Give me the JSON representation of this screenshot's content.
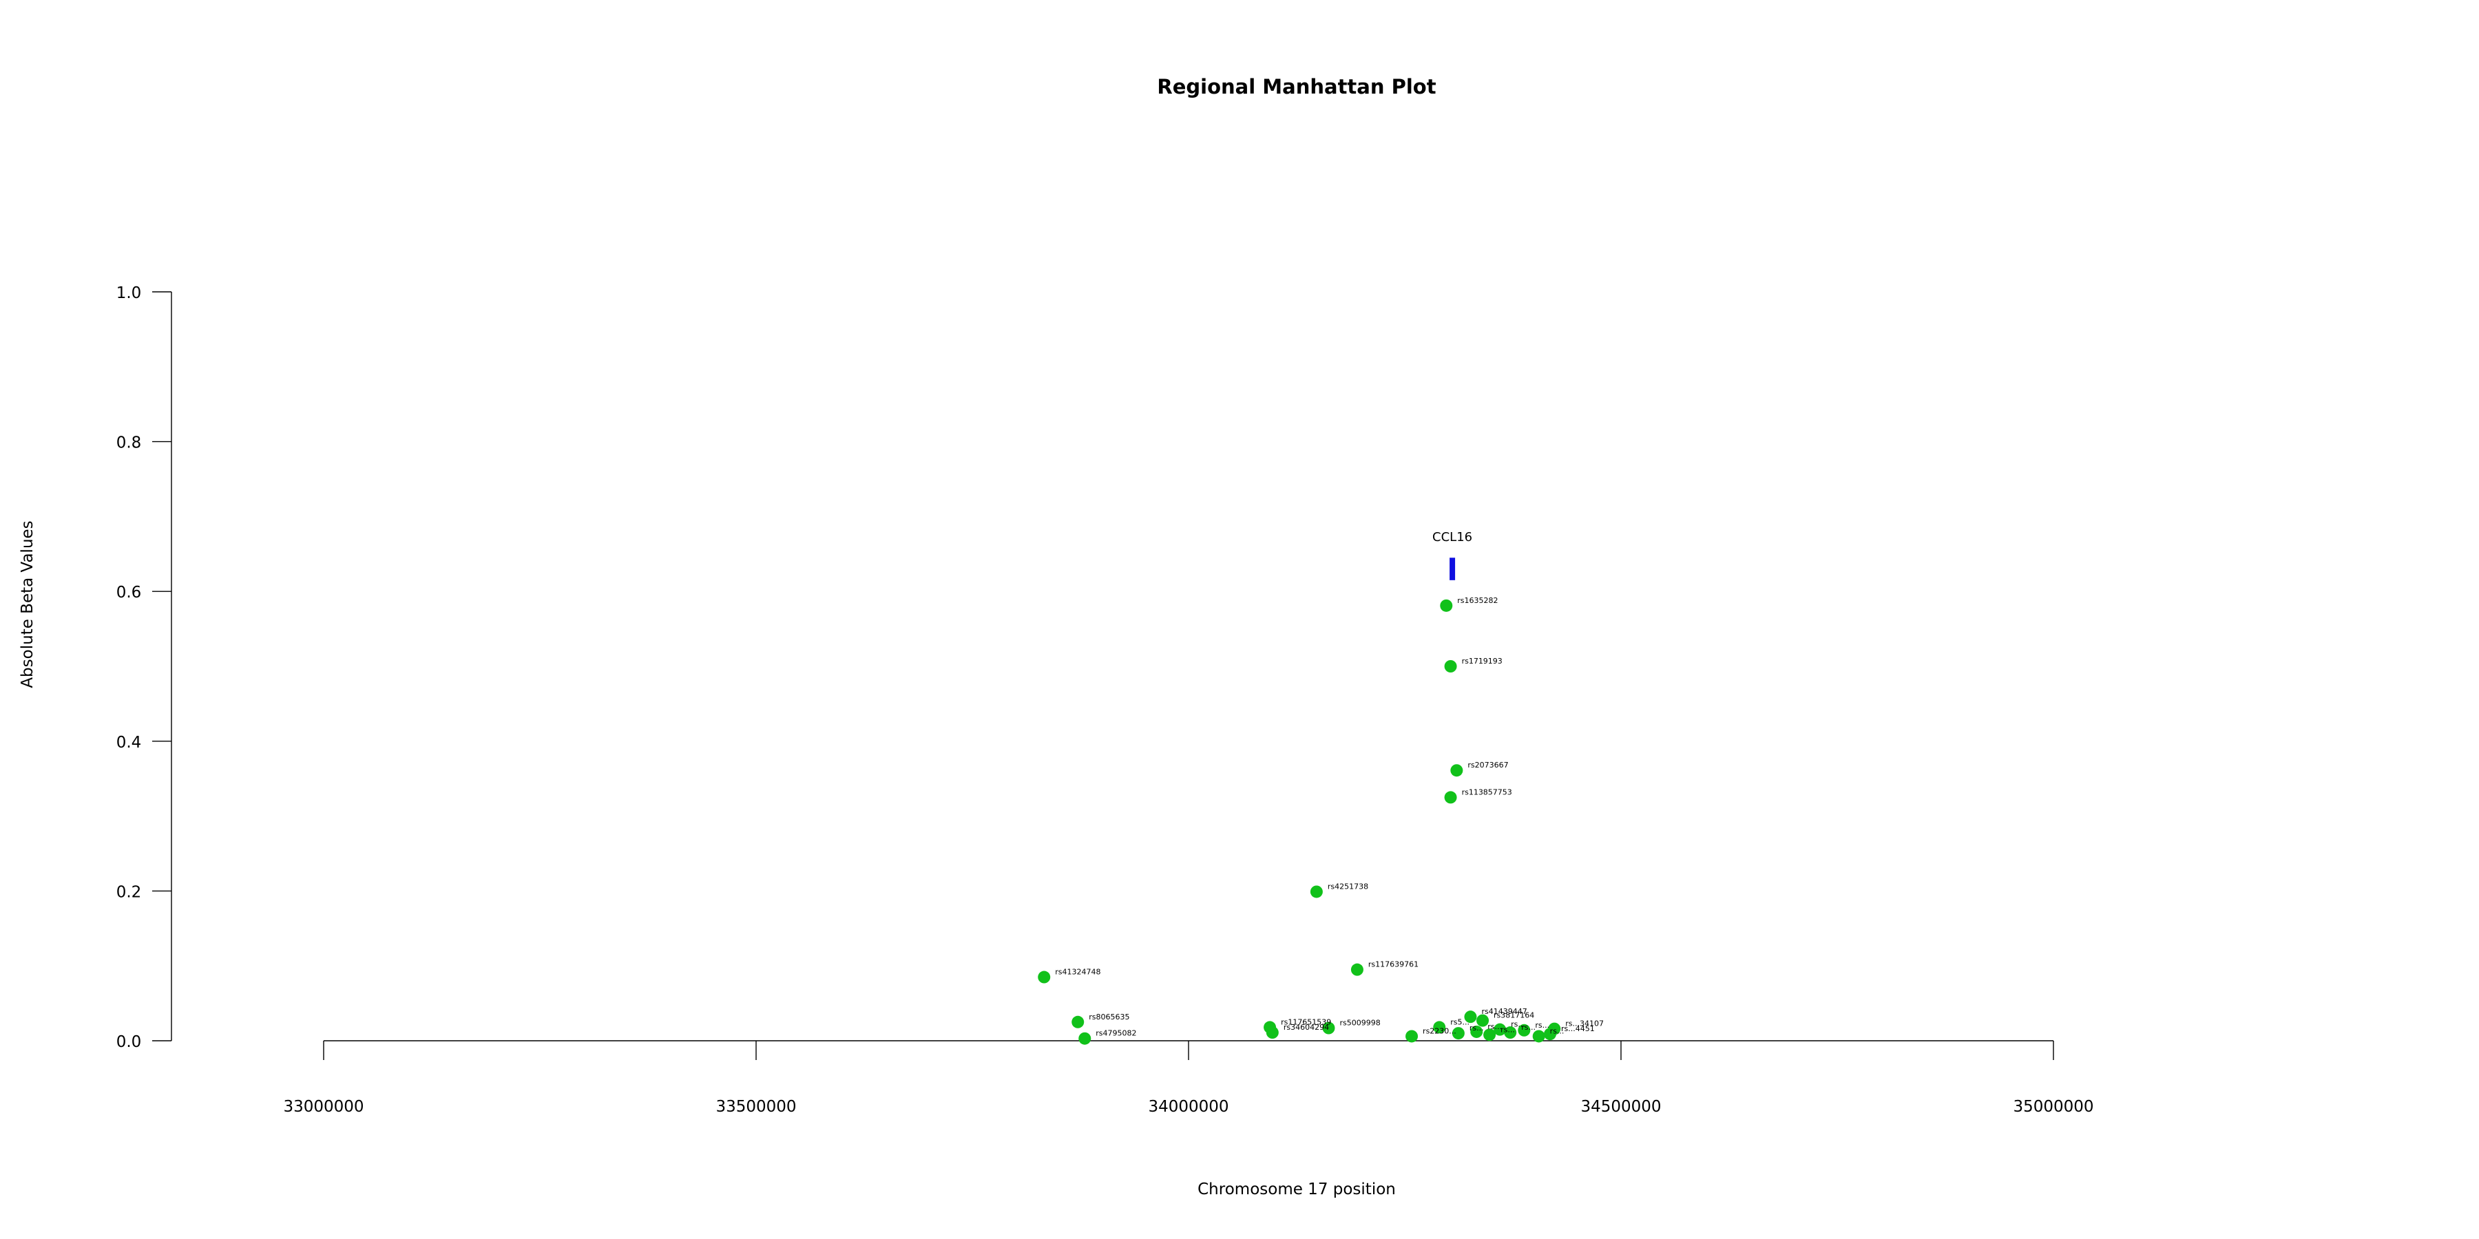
{
  "chart_data": {
    "type": "scatter",
    "title": "Regional Manhattan Plot",
    "xlabel": "Chromosome 17 position",
    "ylabel": "Absolute Beta Values",
    "xlim": [
      33000000,
      35000000
    ],
    "ylim": [
      0,
      1.0
    ],
    "x_ticks": [
      33000000,
      33500000,
      34000000,
      34500000,
      35000000
    ],
    "x_tick_labels": [
      "33000000",
      "33500000",
      "34000000",
      "34500000",
      "35000000"
    ],
    "y_ticks": [
      0.0,
      0.2,
      0.4,
      0.6,
      0.8,
      1.0
    ],
    "y_tick_labels": [
      "0.0",
      "0.2",
      "0.4",
      "0.6",
      "0.8",
      "1.0"
    ],
    "point_color": "#11c11a",
    "gene_color": "#1010e0",
    "gene": {
      "name": "CCL16",
      "x": 34305000,
      "y_low": 0.615,
      "y_high": 0.645
    },
    "series": [
      {
        "points": [
          {
            "snp": "rs1635282",
            "x": 34298000,
            "y": 0.581
          },
          {
            "snp": "rs1719193",
            "x": 34303000,
            "y": 0.5
          },
          {
            "snp": "rs2073667",
            "x": 34310000,
            "y": 0.361
          },
          {
            "snp": "rs113857753",
            "x": 34303000,
            "y": 0.325
          },
          {
            "snp": "rs4251738",
            "x": 34148000,
            "y": 0.199
          },
          {
            "snp": "rs117639761",
            "x": 34195000,
            "y": 0.095
          },
          {
            "snp": "rs41324748",
            "x": 33833000,
            "y": 0.085
          },
          {
            "snp": "rs8065635",
            "x": 33872000,
            "y": 0.025
          },
          {
            "snp": "rs4795082",
            "x": 33880000,
            "y": 0.003
          },
          {
            "snp": "rs117651539",
            "x": 34094000,
            "y": 0.018
          },
          {
            "snp": "rs34604294",
            "x": 34097000,
            "y": 0.011
          },
          {
            "snp": "rs5009998",
            "x": 34162000,
            "y": 0.017
          },
          {
            "snp": "rs2230...",
            "x": 34258000,
            "y": 0.006
          },
          {
            "snp": "rs5...",
            "x": 34290000,
            "y": 0.018
          },
          {
            "snp": "rs41439447",
            "x": 34326000,
            "y": 0.032
          },
          {
            "snp": "rs3817164",
            "x": 34340000,
            "y": 0.027
          },
          {
            "snp": "rs...",
            "x": 34312000,
            "y": 0.01
          },
          {
            "snp": "rs...",
            "x": 34333000,
            "y": 0.012
          },
          {
            "snp": "rs...",
            "x": 34348000,
            "y": 0.008
          },
          {
            "snp": "rs...",
            "x": 34360000,
            "y": 0.015
          },
          {
            "snp": "rs...",
            "x": 34372000,
            "y": 0.011
          },
          {
            "snp": "rs...",
            "x": 34388000,
            "y": 0.014
          },
          {
            "snp": "rs...",
            "x": 34405000,
            "y": 0.006
          },
          {
            "snp": "rs...34107",
            "x": 34423000,
            "y": 0.016
          },
          {
            "snp": "rs...4451",
            "x": 34418000,
            "y": 0.009
          }
        ]
      }
    ]
  }
}
